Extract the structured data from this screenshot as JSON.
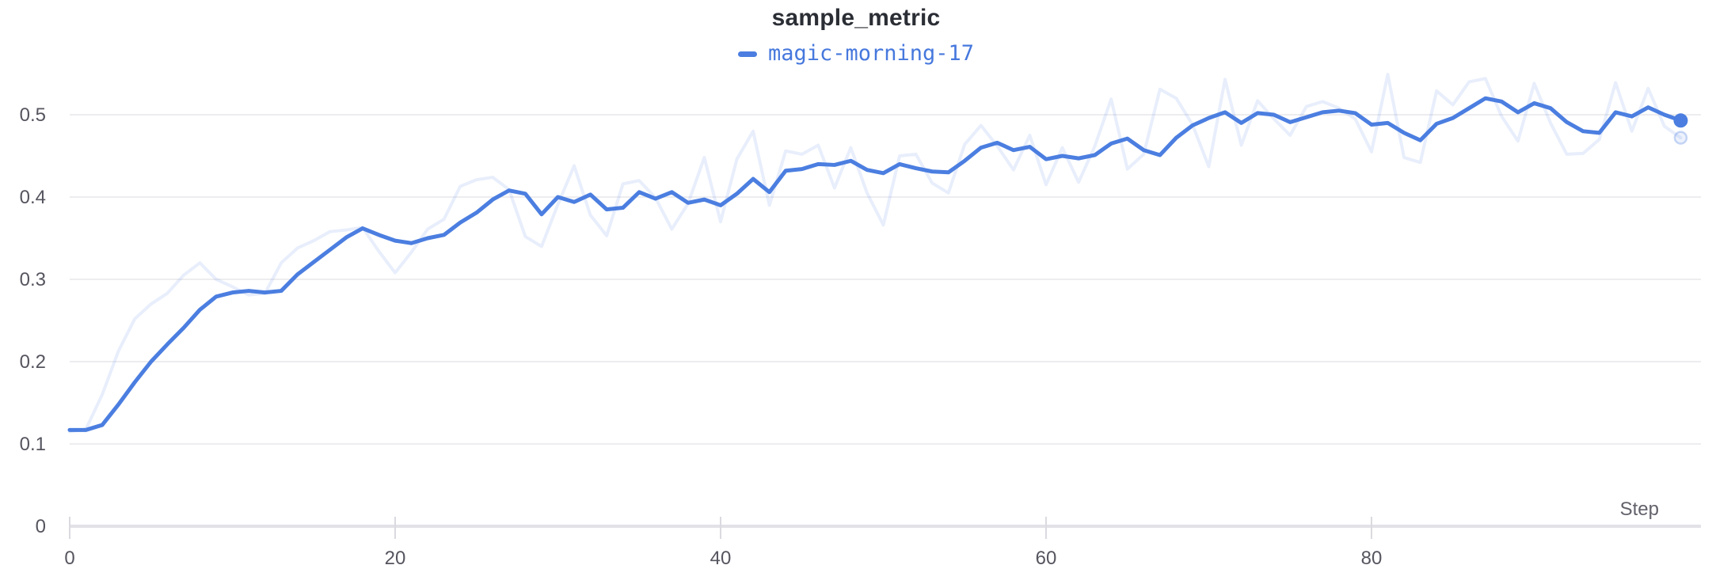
{
  "panel": {
    "title": "sample_metric"
  },
  "legend": {
    "run_name": "magic-morning-17"
  },
  "colors": {
    "accent": "#4b7ee0",
    "ghost_opacity": 0.13,
    "grid": "#ededf0",
    "axis": "#e2e2e7",
    "tick_mark": "#dadae0",
    "tick_label": "#55555f",
    "title_text": "#2b2e35"
  },
  "chart_data": {
    "type": "line",
    "title": "sample_metric",
    "xlabel": "Step",
    "ylabel": "",
    "legend_position": "top-center",
    "grid": "horizontal",
    "xlim": [
      0,
      100
    ],
    "ylim": [
      0,
      0.55
    ],
    "xticks": [
      {
        "v": 0,
        "label": "0"
      },
      {
        "v": 20,
        "label": "20"
      },
      {
        "v": 40,
        "label": "40"
      },
      {
        "v": 60,
        "label": "60"
      },
      {
        "v": 80,
        "label": "80"
      }
    ],
    "yticks": [
      {
        "v": 0,
        "label": "0"
      },
      {
        "v": 0.1,
        "label": "0.1"
      },
      {
        "v": 0.2,
        "label": "0.2"
      },
      {
        "v": 0.3,
        "label": "0.3"
      },
      {
        "v": 0.4,
        "label": "0.4"
      },
      {
        "v": 0.5,
        "label": "0.5"
      }
    ],
    "x": [
      0,
      1,
      2,
      3,
      4,
      5,
      6,
      7,
      8,
      9,
      10,
      11,
      12,
      13,
      14,
      15,
      16,
      17,
      18,
      19,
      20,
      21,
      22,
      23,
      24,
      25,
      26,
      27,
      28,
      29,
      30,
      31,
      32,
      33,
      34,
      35,
      36,
      37,
      38,
      39,
      40,
      41,
      42,
      43,
      44,
      45,
      46,
      47,
      48,
      49,
      50,
      51,
      52,
      53,
      54,
      55,
      56,
      57,
      58,
      59,
      60,
      61,
      62,
      63,
      64,
      65,
      66,
      67,
      68,
      69,
      70,
      71,
      72,
      73,
      74,
      75,
      76,
      77,
      78,
      79,
      80,
      81,
      82,
      83,
      84,
      85,
      86,
      87,
      88,
      89,
      90,
      91,
      92,
      93,
      94,
      95,
      96,
      97,
      98,
      99
    ],
    "series": [
      {
        "name": "magic-morning-17",
        "style": "smoothed",
        "color": "#4b7ee0",
        "opacity": 1,
        "values": [
          0.117,
          0.117,
          0.123,
          0.148,
          0.175,
          0.2,
          0.221,
          0.241,
          0.263,
          0.279,
          0.284,
          0.286,
          0.284,
          0.286,
          0.306,
          0.321,
          0.336,
          0.351,
          0.362,
          0.354,
          0.347,
          0.344,
          0.35,
          0.354,
          0.369,
          0.381,
          0.397,
          0.408,
          0.404,
          0.379,
          0.4,
          0.394,
          0.403,
          0.385,
          0.387,
          0.406,
          0.398,
          0.406,
          0.393,
          0.397,
          0.39,
          0.404,
          0.422,
          0.406,
          0.432,
          0.434,
          0.44,
          0.439,
          0.444,
          0.433,
          0.429,
          0.44,
          0.435,
          0.431,
          0.43,
          0.444,
          0.46,
          0.466,
          0.457,
          0.461,
          0.446,
          0.45,
          0.447,
          0.451,
          0.465,
          0.471,
          0.457,
          0.451,
          0.472,
          0.487,
          0.496,
          0.503,
          0.49,
          0.502,
          0.5,
          0.491,
          0.497,
          0.503,
          0.505,
          0.502,
          0.488,
          0.49,
          0.478,
          0.469,
          0.489,
          0.496,
          0.508,
          0.52,
          0.516,
          0.503,
          0.514,
          0.508,
          0.491,
          0.48,
          0.478,
          0.503,
          0.498,
          0.509,
          0.5,
          0.493
        ]
      },
      {
        "name": "magic-morning-17",
        "style": "raw-unsmoothed",
        "color": "#4b7ee0",
        "opacity": 0.13,
        "values": [
          0.115,
          0.118,
          0.16,
          0.213,
          0.252,
          0.27,
          0.283,
          0.305,
          0.32,
          0.3,
          0.291,
          0.281,
          0.283,
          0.32,
          0.338,
          0.347,
          0.358,
          0.36,
          0.363,
          0.334,
          0.308,
          0.333,
          0.361,
          0.373,
          0.413,
          0.421,
          0.424,
          0.409,
          0.352,
          0.34,
          0.391,
          0.438,
          0.378,
          0.353,
          0.416,
          0.42,
          0.399,
          0.361,
          0.392,
          0.448,
          0.37,
          0.446,
          0.48,
          0.39,
          0.456,
          0.452,
          0.463,
          0.411,
          0.46,
          0.405,
          0.366,
          0.45,
          0.452,
          0.417,
          0.405,
          0.464,
          0.487,
          0.462,
          0.433,
          0.475,
          0.415,
          0.46,
          0.418,
          0.462,
          0.519,
          0.434,
          0.452,
          0.531,
          0.52,
          0.488,
          0.437,
          0.543,
          0.463,
          0.517,
          0.495,
          0.475,
          0.51,
          0.516,
          0.508,
          0.495,
          0.455,
          0.549,
          0.448,
          0.442,
          0.529,
          0.512,
          0.54,
          0.544,
          0.498,
          0.468,
          0.538,
          0.49,
          0.452,
          0.453,
          0.47,
          0.539,
          0.48,
          0.532,
          0.486,
          0.472
        ]
      }
    ]
  }
}
